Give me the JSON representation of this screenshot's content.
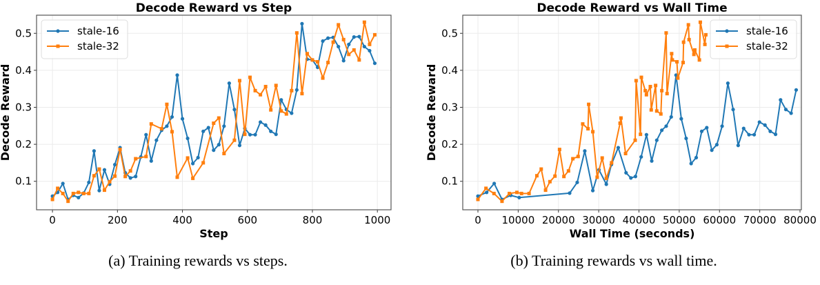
{
  "captions": [
    "(a) Training rewards vs steps.",
    "(b) Training rewards vs wall time."
  ],
  "chart_data": [
    {
      "type": "line",
      "title": "Decode Reward vs Step",
      "xlabel": "Step",
      "ylabel": "Decode Reward",
      "xlim": [
        -49,
        1042
      ],
      "ylim": [
        0.023,
        0.549
      ],
      "xticks": [
        0,
        200,
        400,
        600,
        800,
        1000
      ],
      "yticks": [
        0.1,
        0.2,
        0.3,
        0.4,
        0.5
      ],
      "grid": true,
      "legend": "top-left",
      "series": [
        {
          "name": "stale-16",
          "color": "#1f77b4",
          "marker": "circle",
          "x": [
            0,
            16,
            32,
            48,
            64,
            80,
            96,
            112,
            128,
            144,
            160,
            176,
            192,
            208,
            224,
            240,
            256,
            272,
            288,
            304,
            320,
            336,
            352,
            368,
            384,
            400,
            416,
            432,
            448,
            464,
            480,
            496,
            512,
            528,
            544,
            560,
            576,
            592,
            608,
            624,
            640,
            656,
            672,
            688,
            704,
            720,
            736,
            752,
            768,
            784,
            800,
            816,
            832,
            848,
            864,
            880,
            896,
            912,
            928,
            944,
            960,
            976,
            992
          ],
          "y": [
            0.06,
            0.07,
            0.094,
            0.051,
            0.062,
            0.056,
            0.068,
            0.097,
            0.182,
            0.075,
            0.131,
            0.092,
            0.145,
            0.191,
            0.123,
            0.109,
            0.113,
            0.166,
            0.226,
            0.155,
            0.211,
            0.238,
            0.249,
            0.274,
            0.387,
            0.269,
            0.216,
            0.148,
            0.164,
            0.235,
            0.245,
            0.184,
            0.199,
            0.249,
            0.365,
            0.294,
            0.197,
            0.243,
            0.226,
            0.226,
            0.26,
            0.252,
            0.235,
            0.227,
            0.32,
            0.294,
            0.284,
            0.347,
            0.526,
            0.43,
            0.428,
            0.408,
            0.479,
            0.487,
            0.489,
            0.464,
            0.426,
            0.47,
            0.49,
            0.491,
            0.464,
            0.453,
            0.419
          ]
        },
        {
          "name": "stale-32",
          "color": "#ff7f0e",
          "marker": "square",
          "x": [
            0,
            16,
            32,
            48,
            64,
            80,
            96,
            112,
            128,
            144,
            160,
            176,
            192,
            208,
            224,
            240,
            256,
            288,
            304,
            336,
            352,
            368,
            384,
            416,
            432,
            464,
            496,
            512,
            528,
            560,
            576,
            592,
            608,
            624,
            640,
            656,
            672,
            688,
            704,
            720,
            736,
            752,
            768,
            784,
            800,
            816,
            832,
            848,
            864,
            880,
            896,
            912,
            928,
            944,
            960,
            976,
            992
          ],
          "y": [
            0.051,
            0.081,
            0.067,
            0.046,
            0.067,
            0.07,
            0.067,
            0.067,
            0.115,
            0.133,
            0.076,
            0.099,
            0.114,
            0.186,
            0.113,
            0.128,
            0.161,
            0.167,
            0.255,
            0.242,
            0.308,
            0.234,
            0.111,
            0.163,
            0.108,
            0.15,
            0.257,
            0.271,
            0.175,
            0.211,
            0.372,
            0.227,
            0.381,
            0.345,
            0.334,
            0.356,
            0.293,
            0.359,
            0.29,
            0.282,
            0.345,
            0.501,
            0.337,
            0.445,
            0.428,
            0.423,
            0.379,
            0.421,
            0.476,
            0.523,
            0.483,
            0.443,
            0.455,
            0.428,
            0.53,
            0.47,
            0.496
          ]
        }
      ]
    },
    {
      "type": "line",
      "title": "Decode Reward vs Wall Time",
      "xlabel": "Wall Time (seconds)",
      "ylabel": "Decode Reward",
      "xlim": [
        -3770,
        80340
      ],
      "ylim": [
        0.023,
        0.549
      ],
      "xticks": [
        0,
        10000,
        20000,
        30000,
        40000,
        50000,
        60000,
        70000,
        80000
      ],
      "yticks": [
        0.1,
        0.2,
        0.3,
        0.4,
        0.5
      ],
      "grid": true,
      "legend": "top-right",
      "series": [
        {
          "name": "stale-16",
          "color": "#1f77b4",
          "marker": "circle",
          "x": [
            0,
            2164,
            4043,
            5980,
            8144,
            10251,
            22780,
            24660,
            26540,
            28530,
            30070,
            31890,
            33140,
            34850,
            36790,
            37990,
            39130,
            40550,
            41860,
            43170,
            44420,
            45670,
            46760,
            48010,
            49210,
            50510,
            51710,
            52960,
            54220,
            55580,
            56840,
            58090,
            59340,
            60650,
            62080,
            63390,
            64640,
            66000,
            67320,
            68620,
            69930,
            71300,
            72610,
            73920,
            75170,
            76480,
            77790,
            79050
          ],
          "y": [
            0.06,
            0.07,
            0.094,
            0.051,
            0.062,
            0.056,
            0.068,
            0.097,
            0.182,
            0.075,
            0.131,
            0.092,
            0.145,
            0.191,
            0.123,
            0.109,
            0.113,
            0.166,
            0.226,
            0.155,
            0.211,
            0.238,
            0.249,
            0.274,
            0.387,
            0.269,
            0.216,
            0.148,
            0.164,
            0.235,
            0.245,
            0.184,
            0.199,
            0.249,
            0.365,
            0.294,
            0.197,
            0.243,
            0.226,
            0.226,
            0.26,
            0.252,
            0.235,
            0.227,
            0.32,
            0.294,
            0.284,
            0.347
          ]
        },
        {
          "name": "stale-32",
          "color": "#ff7f0e",
          "marker": "square",
          "x": [
            0,
            1993,
            3987,
            5980,
            7802,
            9683,
            10822,
            12701,
            14636,
            15718,
            16800,
            17882,
            19135,
            20274,
            21356,
            22495,
            23577,
            24887,
            26026,
            27336,
            27507,
            28531,
            29613,
            30866,
            31891,
            33200,
            35307,
            35535,
            36670,
            39062,
            39290,
            40372,
            40600,
            41568,
            41853,
            42821,
            43048,
            44130,
            44415,
            45440,
            45668,
            46750,
            46978,
            48117,
            48288,
            49427,
            49655,
            50965,
            51079,
            52275,
            52446,
            53642,
            53870,
            55009,
            55237,
            56376,
            56604
          ],
          "y": [
            0.051,
            0.081,
            0.067,
            0.046,
            0.067,
            0.07,
            0.067,
            0.067,
            0.115,
            0.133,
            0.076,
            0.099,
            0.114,
            0.186,
            0.113,
            0.128,
            0.161,
            0.167,
            0.255,
            0.242,
            0.308,
            0.234,
            0.111,
            0.163,
            0.108,
            0.15,
            0.257,
            0.271,
            0.175,
            0.211,
            0.372,
            0.227,
            0.381,
            0.345,
            0.334,
            0.356,
            0.293,
            0.359,
            0.29,
            0.282,
            0.345,
            0.501,
            0.337,
            0.445,
            0.428,
            0.423,
            0.379,
            0.421,
            0.476,
            0.523,
            0.483,
            0.443,
            0.455,
            0.428,
            0.53,
            0.47,
            0.496
          ]
        }
      ]
    }
  ]
}
